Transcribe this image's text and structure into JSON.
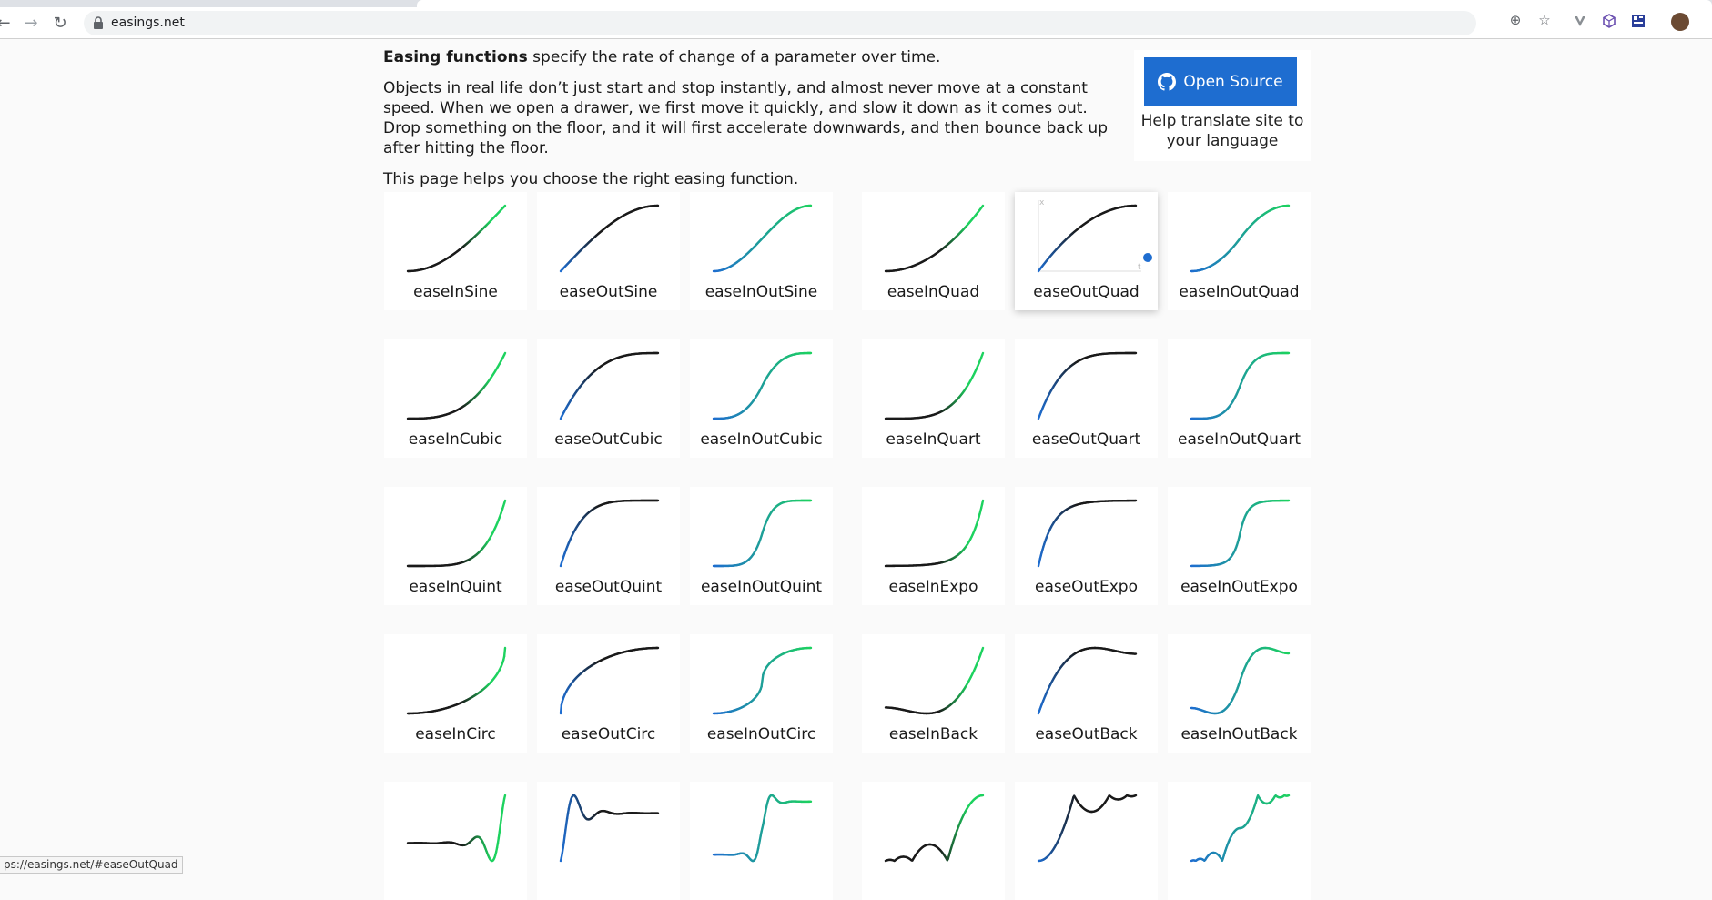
{
  "browser": {
    "url": "easings.net",
    "icons": [
      "back-arrow-icon",
      "forward-arrow-icon",
      "reload-icon",
      "lock-icon",
      "add-icon",
      "star-icon",
      "extension-v-icon",
      "extension-cube-icon",
      "extension-box-icon",
      "profile-avatar"
    ],
    "status_url": "ps://easings.net/#easeOutQuad"
  },
  "intro": {
    "bold": "Easing functions",
    "rest": " specify the rate of change of a parameter over time.",
    "p2": "Objects in real life don’t just start and stop instantly, and almost never move at a constant speed. When we open a drawer, we first move it quickly, and slow it down as it comes out. Drop something on the floor, and it will first accelerate downwards, and then bounce back up after hitting the floor.",
    "p3": "This page helps you choose the right easing function."
  },
  "open_source": {
    "button": "Open Source",
    "help": "Help translate site to your language",
    "icon": "github-icon",
    "color": "#1e6dd0"
  },
  "colors": {
    "start": "#1e6dd0",
    "mid": "#1a1a1a",
    "end": "#1dd25f"
  },
  "easings": [
    {
      "name": "easeInSine",
      "kind": "in"
    },
    {
      "name": "easeOutSine",
      "kind": "out"
    },
    {
      "name": "easeInOutSine",
      "kind": "inout"
    },
    {
      "name": "easeInQuad",
      "kind": "in"
    },
    {
      "name": "easeOutQuad",
      "kind": "out",
      "hovered": true,
      "axis_labels": [
        "x",
        "t"
      ]
    },
    {
      "name": "easeInOutQuad",
      "kind": "inout"
    },
    {
      "name": "easeInCubic",
      "kind": "in"
    },
    {
      "name": "easeOutCubic",
      "kind": "out"
    },
    {
      "name": "easeInOutCubic",
      "kind": "inout"
    },
    {
      "name": "easeInQuart",
      "kind": "in"
    },
    {
      "name": "easeOutQuart",
      "kind": "out"
    },
    {
      "name": "easeInOutQuart",
      "kind": "inout"
    },
    {
      "name": "easeInQuint",
      "kind": "in"
    },
    {
      "name": "easeOutQuint",
      "kind": "out"
    },
    {
      "name": "easeInOutQuint",
      "kind": "inout"
    },
    {
      "name": "easeInExpo",
      "kind": "in"
    },
    {
      "name": "easeOutExpo",
      "kind": "out"
    },
    {
      "name": "easeInOutExpo",
      "kind": "inout"
    },
    {
      "name": "easeInCirc",
      "kind": "in"
    },
    {
      "name": "easeOutCirc",
      "kind": "out"
    },
    {
      "name": "easeInOutCirc",
      "kind": "inout"
    },
    {
      "name": "easeInBack",
      "kind": "in"
    },
    {
      "name": "easeOutBack",
      "kind": "out"
    },
    {
      "name": "easeInOutBack",
      "kind": "inout"
    },
    {
      "name": "",
      "kind": "in"
    },
    {
      "name": "",
      "kind": "out"
    },
    {
      "name": "",
      "kind": "inout"
    },
    {
      "name": "",
      "kind": "in"
    },
    {
      "name": "",
      "kind": "out"
    },
    {
      "name": "",
      "kind": "inout"
    }
  ]
}
